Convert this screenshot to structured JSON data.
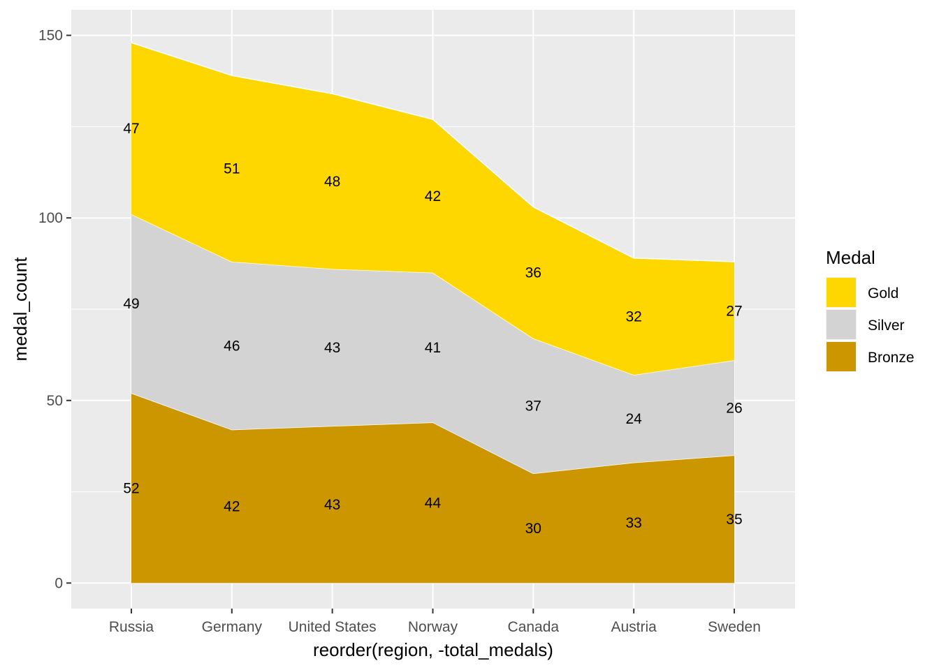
{
  "chart_data": {
    "type": "area",
    "stacked": true,
    "categories": [
      "Russia",
      "Germany",
      "United States",
      "Norway",
      "Canada",
      "Austria",
      "Sweden"
    ],
    "series": [
      {
        "name": "Bronze",
        "color": "#CC9600",
        "values": [
          52,
          42,
          43,
          44,
          30,
          33,
          35
        ]
      },
      {
        "name": "Silver",
        "color": "#D3D3D3",
        "values": [
          49,
          46,
          43,
          41,
          37,
          24,
          26
        ]
      },
      {
        "name": "Gold",
        "color": "#FFD700",
        "values": [
          47,
          51,
          48,
          42,
          36,
          32,
          27
        ]
      }
    ],
    "xlabel": "reorder(region, -total_medals)",
    "ylabel": "medal_count",
    "ylim": [
      -7,
      157
    ],
    "yticks": [
      0,
      50,
      100,
      150
    ],
    "yticks_labels": [
      "0",
      "50",
      "100",
      "150"
    ],
    "grid": true,
    "legend": {
      "title": "Medal",
      "placement": "right",
      "entries": [
        "Gold",
        "Silver",
        "Bronze"
      ]
    }
  }
}
